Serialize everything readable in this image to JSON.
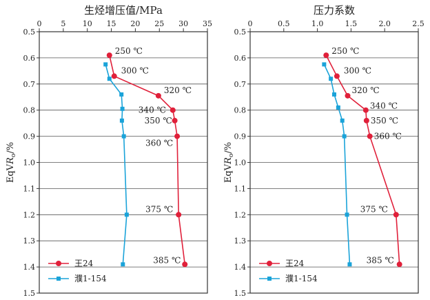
{
  "chart_data": [
    {
      "type": "line",
      "title": "生烃增压值/MPa",
      "ylabel": "EqVRo/%",
      "ylabel_parts": [
        "EqV",
        "R",
        "o",
        "/%"
      ],
      "x_axis_position": "top",
      "xlim": [
        0,
        35
      ],
      "x_ticks": [
        0,
        5,
        10,
        15,
        20,
        25,
        30,
        35
      ],
      "ylim": [
        0.5,
        1.5
      ],
      "y_inverted": true,
      "y_ticks": [
        0.5,
        0.6,
        0.7,
        0.8,
        0.9,
        1.0,
        1.1,
        1.2,
        1.3,
        1.4,
        1.5
      ],
      "grid": "horizontal",
      "legend": "bottom-left",
      "series": [
        {
          "name": "王24",
          "color": "#e0203a",
          "marker": "circle",
          "points": [
            [
              14.6,
              0.59
            ],
            [
              15.6,
              0.67
            ],
            [
              24.8,
              0.745
            ],
            [
              27.8,
              0.8
            ],
            [
              28.2,
              0.84
            ],
            [
              28.7,
              0.9
            ],
            [
              29.0,
              1.2
            ],
            [
              30.3,
              1.39
            ]
          ],
          "labels": [
            "250 ℃",
            "300 ℃",
            "320 ℃",
            "340 ℃",
            "350 ℃",
            "360 ℃",
            "375 ℃",
            "385 ℃"
          ]
        },
        {
          "name": "濮1-154",
          "color": "#1aa3d9",
          "marker": "square",
          "points": [
            [
              13.8,
              0.625
            ],
            [
              14.6,
              0.68
            ],
            [
              17.1,
              0.74
            ],
            [
              17.3,
              0.795
            ],
            [
              17.2,
              0.84
            ],
            [
              17.6,
              0.9
            ],
            [
              18.2,
              1.2
            ],
            [
              17.4,
              1.39
            ]
          ]
        }
      ]
    },
    {
      "type": "line",
      "title": "压力系数",
      "ylabel": "EqVRo/%",
      "ylabel_parts": [
        "EqV",
        "R",
        "o",
        "/%"
      ],
      "x_axis_position": "top",
      "xlim": [
        0,
        2.5
      ],
      "x_ticks": [
        0,
        0.5,
        1.0,
        1.5,
        2.0,
        2.5
      ],
      "x_tick_labels": [
        "0",
        "0.5",
        "1.0",
        "1.5",
        "2.0",
        "2.5"
      ],
      "ylim": [
        0.5,
        1.5
      ],
      "y_inverted": true,
      "y_ticks": [
        0.5,
        0.6,
        0.7,
        0.8,
        0.9,
        1.0,
        1.1,
        1.2,
        1.3,
        1.4,
        1.5
      ],
      "grid": "horizontal",
      "legend": "bottom-left",
      "series": [
        {
          "name": "王24",
          "color": "#e0203a",
          "marker": "circle",
          "points": [
            [
              1.13,
              0.59
            ],
            [
              1.29,
              0.67
            ],
            [
              1.45,
              0.745
            ],
            [
              1.72,
              0.8
            ],
            [
              1.73,
              0.84
            ],
            [
              1.78,
              0.9
            ],
            [
              2.17,
              1.2
            ],
            [
              2.22,
              1.39
            ]
          ],
          "labels": [
            "250 ℃",
            "300 ℃",
            "320 ℃",
            "340 ℃",
            "350 ℃",
            "360 ℃",
            "375 ℃",
            "385 ℃"
          ]
        },
        {
          "name": "濮1-154",
          "color": "#1aa3d9",
          "marker": "square",
          "points": [
            [
              1.1,
              0.625
            ],
            [
              1.2,
              0.68
            ],
            [
              1.25,
              0.74
            ],
            [
              1.31,
              0.79
            ],
            [
              1.37,
              0.84
            ],
            [
              1.4,
              0.9
            ],
            [
              1.44,
              1.2
            ],
            [
              1.48,
              1.39
            ]
          ]
        }
      ]
    }
  ]
}
